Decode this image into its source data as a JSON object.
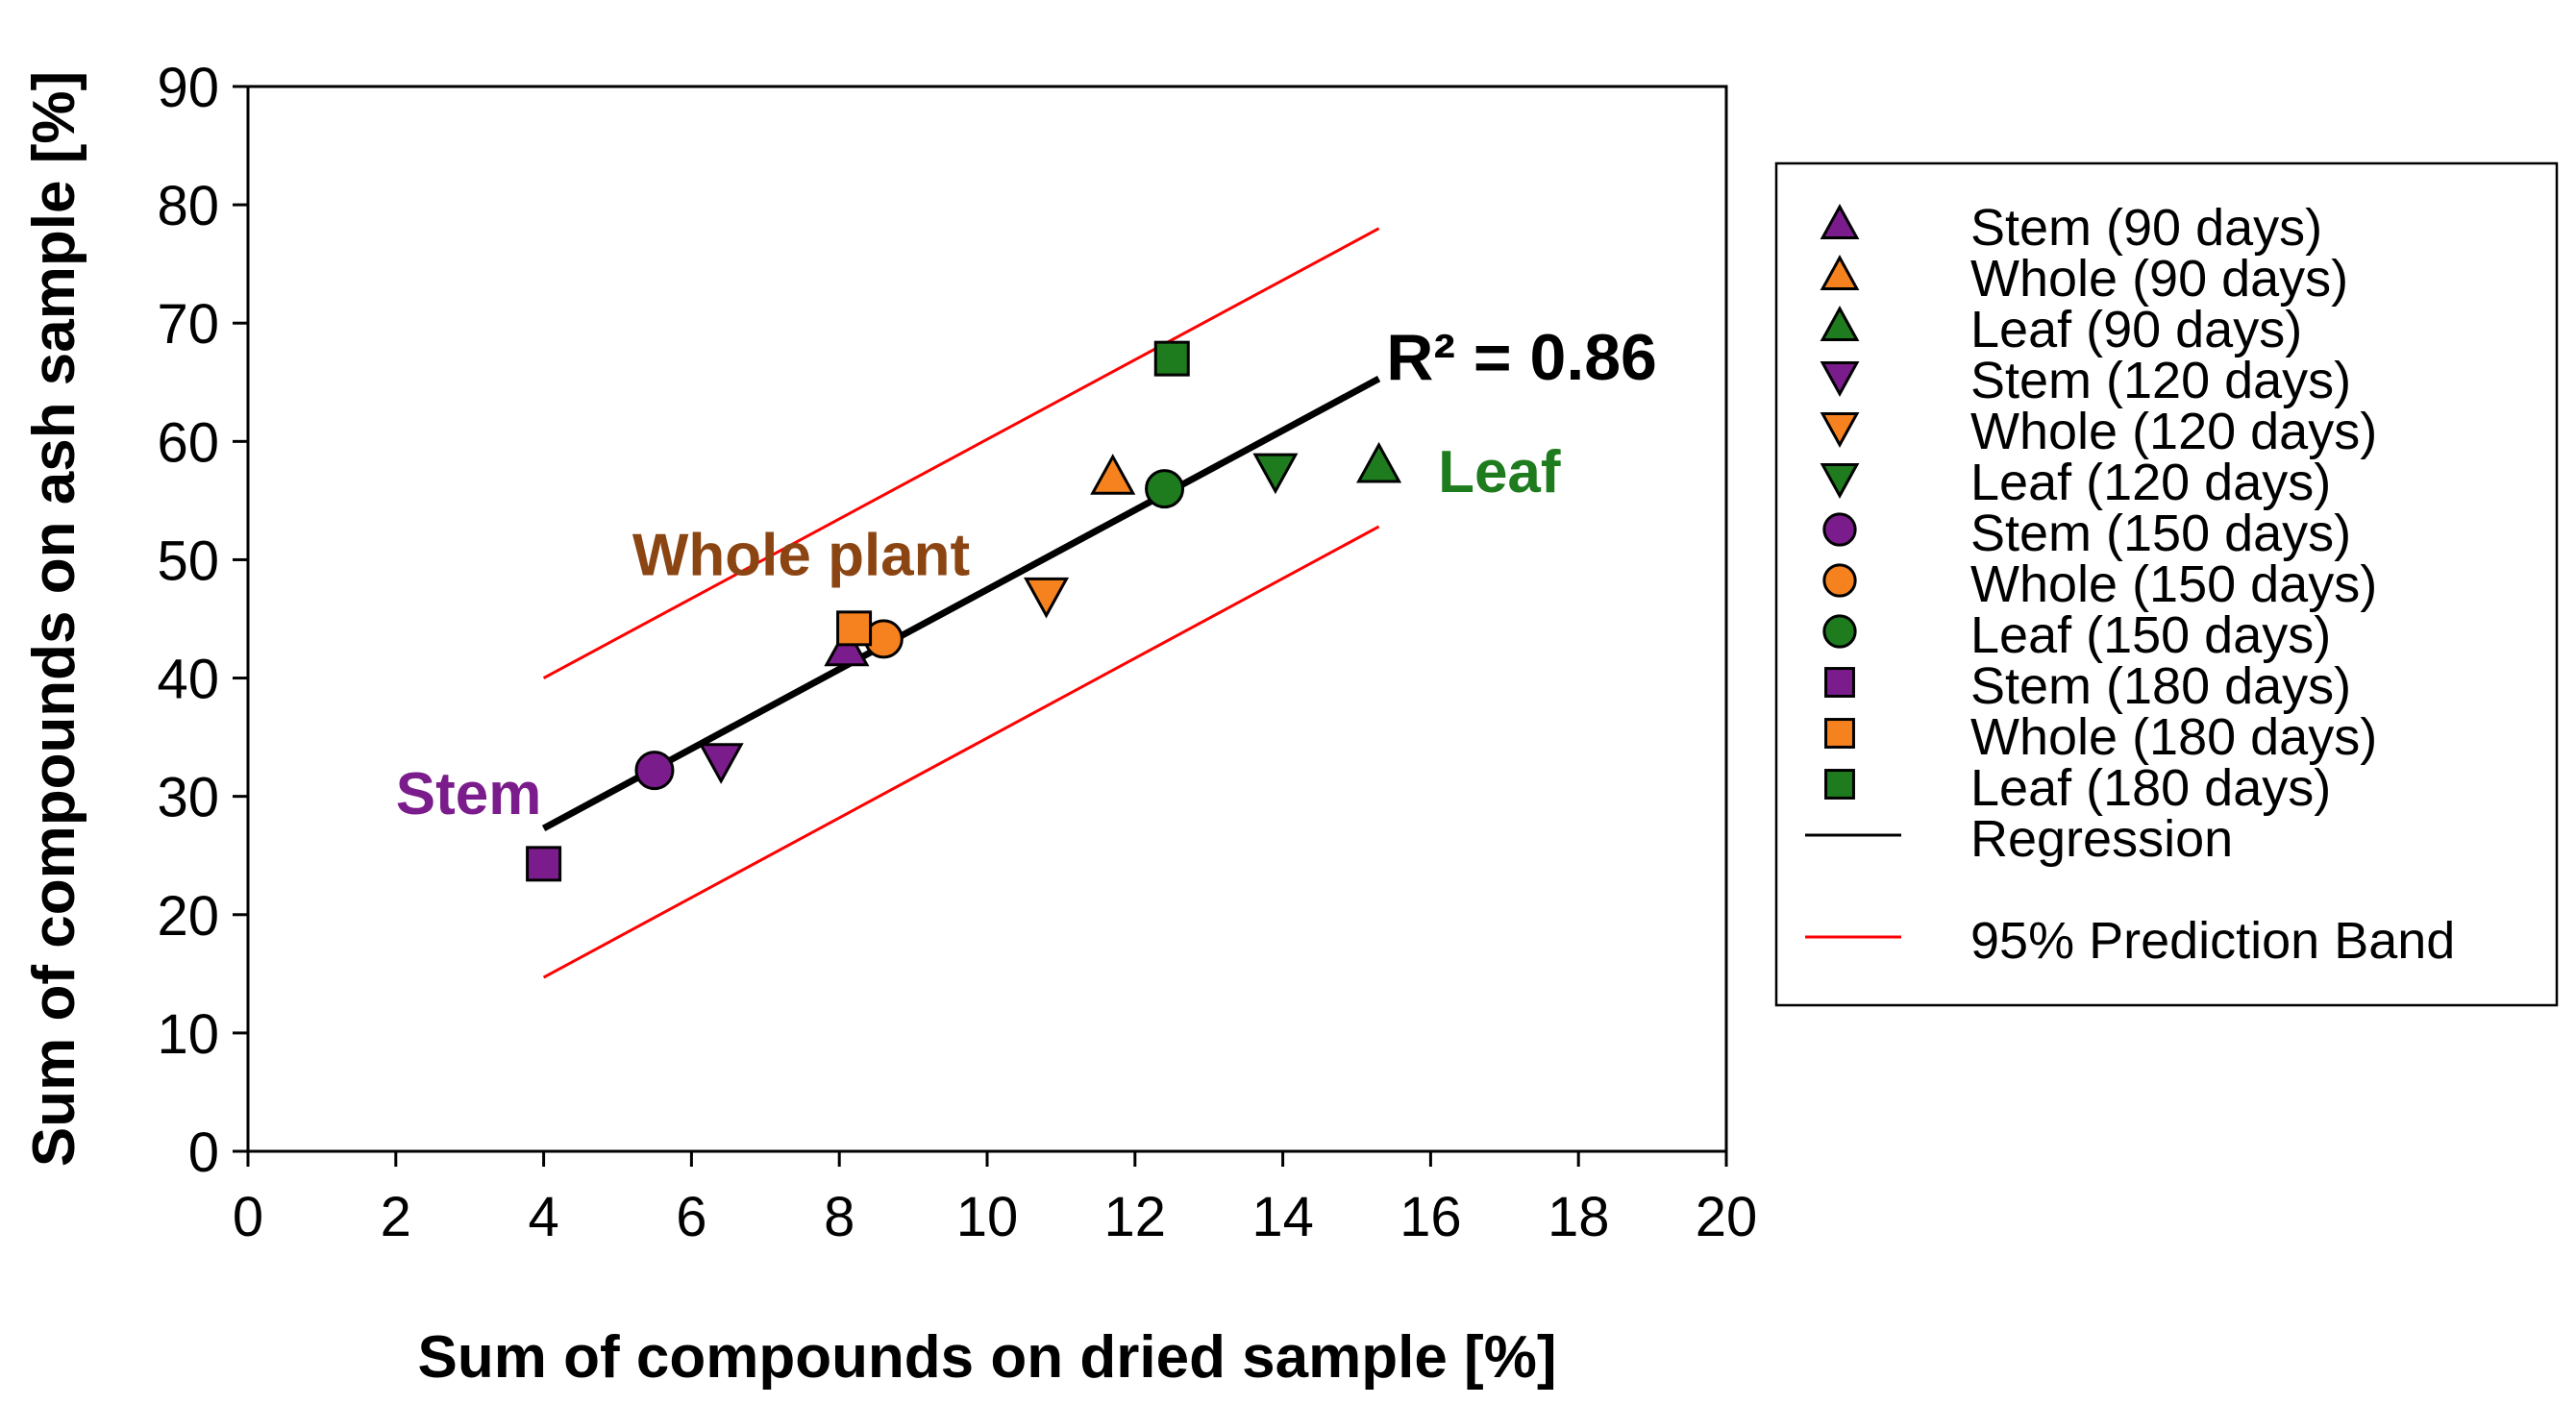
{
  "chart_data": {
    "type": "scatter",
    "xlabel": "Sum of compounds on dried sample [%]",
    "ylabel": "Sum of compounds on ash sample [%]",
    "xlim": [
      0,
      20
    ],
    "ylim": [
      0,
      90
    ],
    "xticks": [
      0,
      2,
      4,
      6,
      8,
      10,
      12,
      14,
      16,
      18,
      20
    ],
    "yticks": [
      0,
      10,
      20,
      30,
      40,
      50,
      60,
      70,
      80,
      90
    ],
    "grid": false,
    "legend_position": "right",
    "colors": {
      "stem": "#7B1C8C",
      "whole": "#F5821F",
      "leaf": "#1E7B1E",
      "regression": "#000000",
      "band": "#FF0000",
      "stem_label": "#7B1C8C",
      "whole_label": "#8B4513",
      "leaf_label": "#1E7B1E"
    },
    "series": [
      {
        "name": "Stem (90 days)",
        "marker": "triangle-up",
        "color_key": "stem",
        "points": [
          [
            8.1,
            42.5
          ]
        ]
      },
      {
        "name": "Whole (90 days)",
        "marker": "triangle-up",
        "color_key": "whole",
        "points": [
          [
            11.7,
            57.0
          ]
        ]
      },
      {
        "name": "Leaf (90 days)",
        "marker": "triangle-up",
        "color_key": "leaf",
        "points": [
          [
            15.3,
            58.0
          ]
        ]
      },
      {
        "name": "Stem (120 days)",
        "marker": "triangle-down",
        "color_key": "stem",
        "points": [
          [
            6.4,
            33.0
          ]
        ]
      },
      {
        "name": "Whole (120 days)",
        "marker": "triangle-down",
        "color_key": "whole",
        "points": [
          [
            10.8,
            47.0
          ]
        ]
      },
      {
        "name": "Leaf (120 days)",
        "marker": "triangle-down",
        "color_key": "leaf",
        "points": [
          [
            13.9,
            57.5
          ]
        ]
      },
      {
        "name": "Stem (150 days)",
        "marker": "circle",
        "color_key": "stem",
        "points": [
          [
            5.5,
            32.2
          ]
        ]
      },
      {
        "name": "Whole (150 days)",
        "marker": "circle",
        "color_key": "whole",
        "points": [
          [
            8.6,
            43.3
          ]
        ]
      },
      {
        "name": "Leaf (150 days)",
        "marker": "circle",
        "color_key": "leaf",
        "points": [
          [
            12.4,
            56.0
          ]
        ]
      },
      {
        "name": "Stem (180 days)",
        "marker": "square",
        "color_key": "stem",
        "points": [
          [
            4.0,
            24.3
          ]
        ]
      },
      {
        "name": "Whole (180 days)",
        "marker": "square",
        "color_key": "whole",
        "points": [
          [
            8.2,
            44.2
          ]
        ]
      },
      {
        "name": "Leaf (180 days)",
        "marker": "square",
        "color_key": "leaf",
        "points": [
          [
            12.5,
            67.0
          ]
        ]
      }
    ],
    "regression": {
      "name": "Regression",
      "x": [
        4.0,
        15.3
      ],
      "y": [
        27.3,
        65.3
      ]
    },
    "prediction_band": {
      "name": "95% Prediction Band",
      "upper": {
        "x": [
          4.0,
          15.3
        ],
        "y": [
          40.0,
          78.0
        ]
      },
      "lower": {
        "x": [
          4.0,
          15.3
        ],
        "y": [
          14.7,
          52.8
        ]
      }
    },
    "annotations": [
      {
        "text": "R² = 0.86",
        "x": 15.4,
        "y": 67.0,
        "color_key": "regression",
        "name": "r-squared-label"
      },
      {
        "text": "Leaf",
        "x": 16.1,
        "y": 57.5,
        "color_key": "leaf_label",
        "name": "leaf-group-label"
      },
      {
        "text": "Whole plant",
        "x": 5.2,
        "y": 50.5,
        "color_key": "whole_label",
        "name": "whole-plant-group-label"
      },
      {
        "text": "Stem",
        "x": 2.0,
        "y": 30.3,
        "color_key": "stem_label",
        "name": "stem-group-label"
      }
    ]
  }
}
